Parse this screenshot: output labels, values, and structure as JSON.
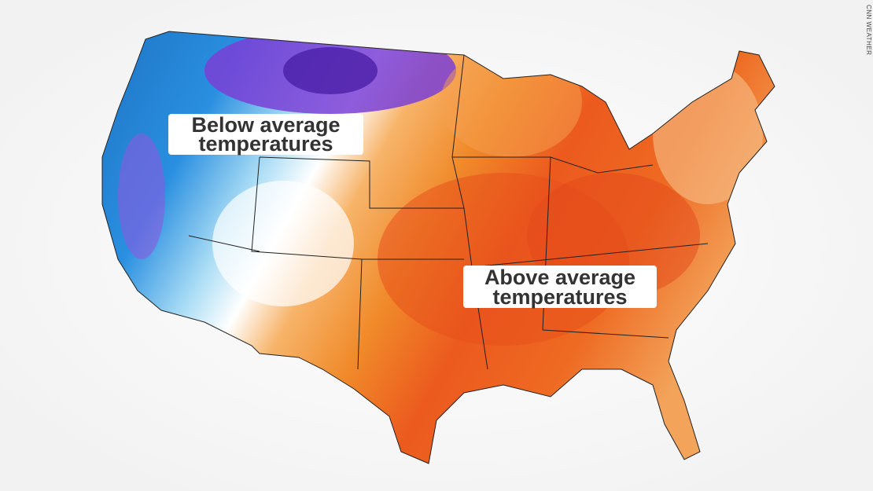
{
  "labels": [
    {
      "lines": [
        "Below average",
        "temperatures"
      ]
    },
    {
      "lines": [
        "Above average",
        "temperatures"
      ]
    }
  ],
  "credit": "CNN WEATHER"
}
